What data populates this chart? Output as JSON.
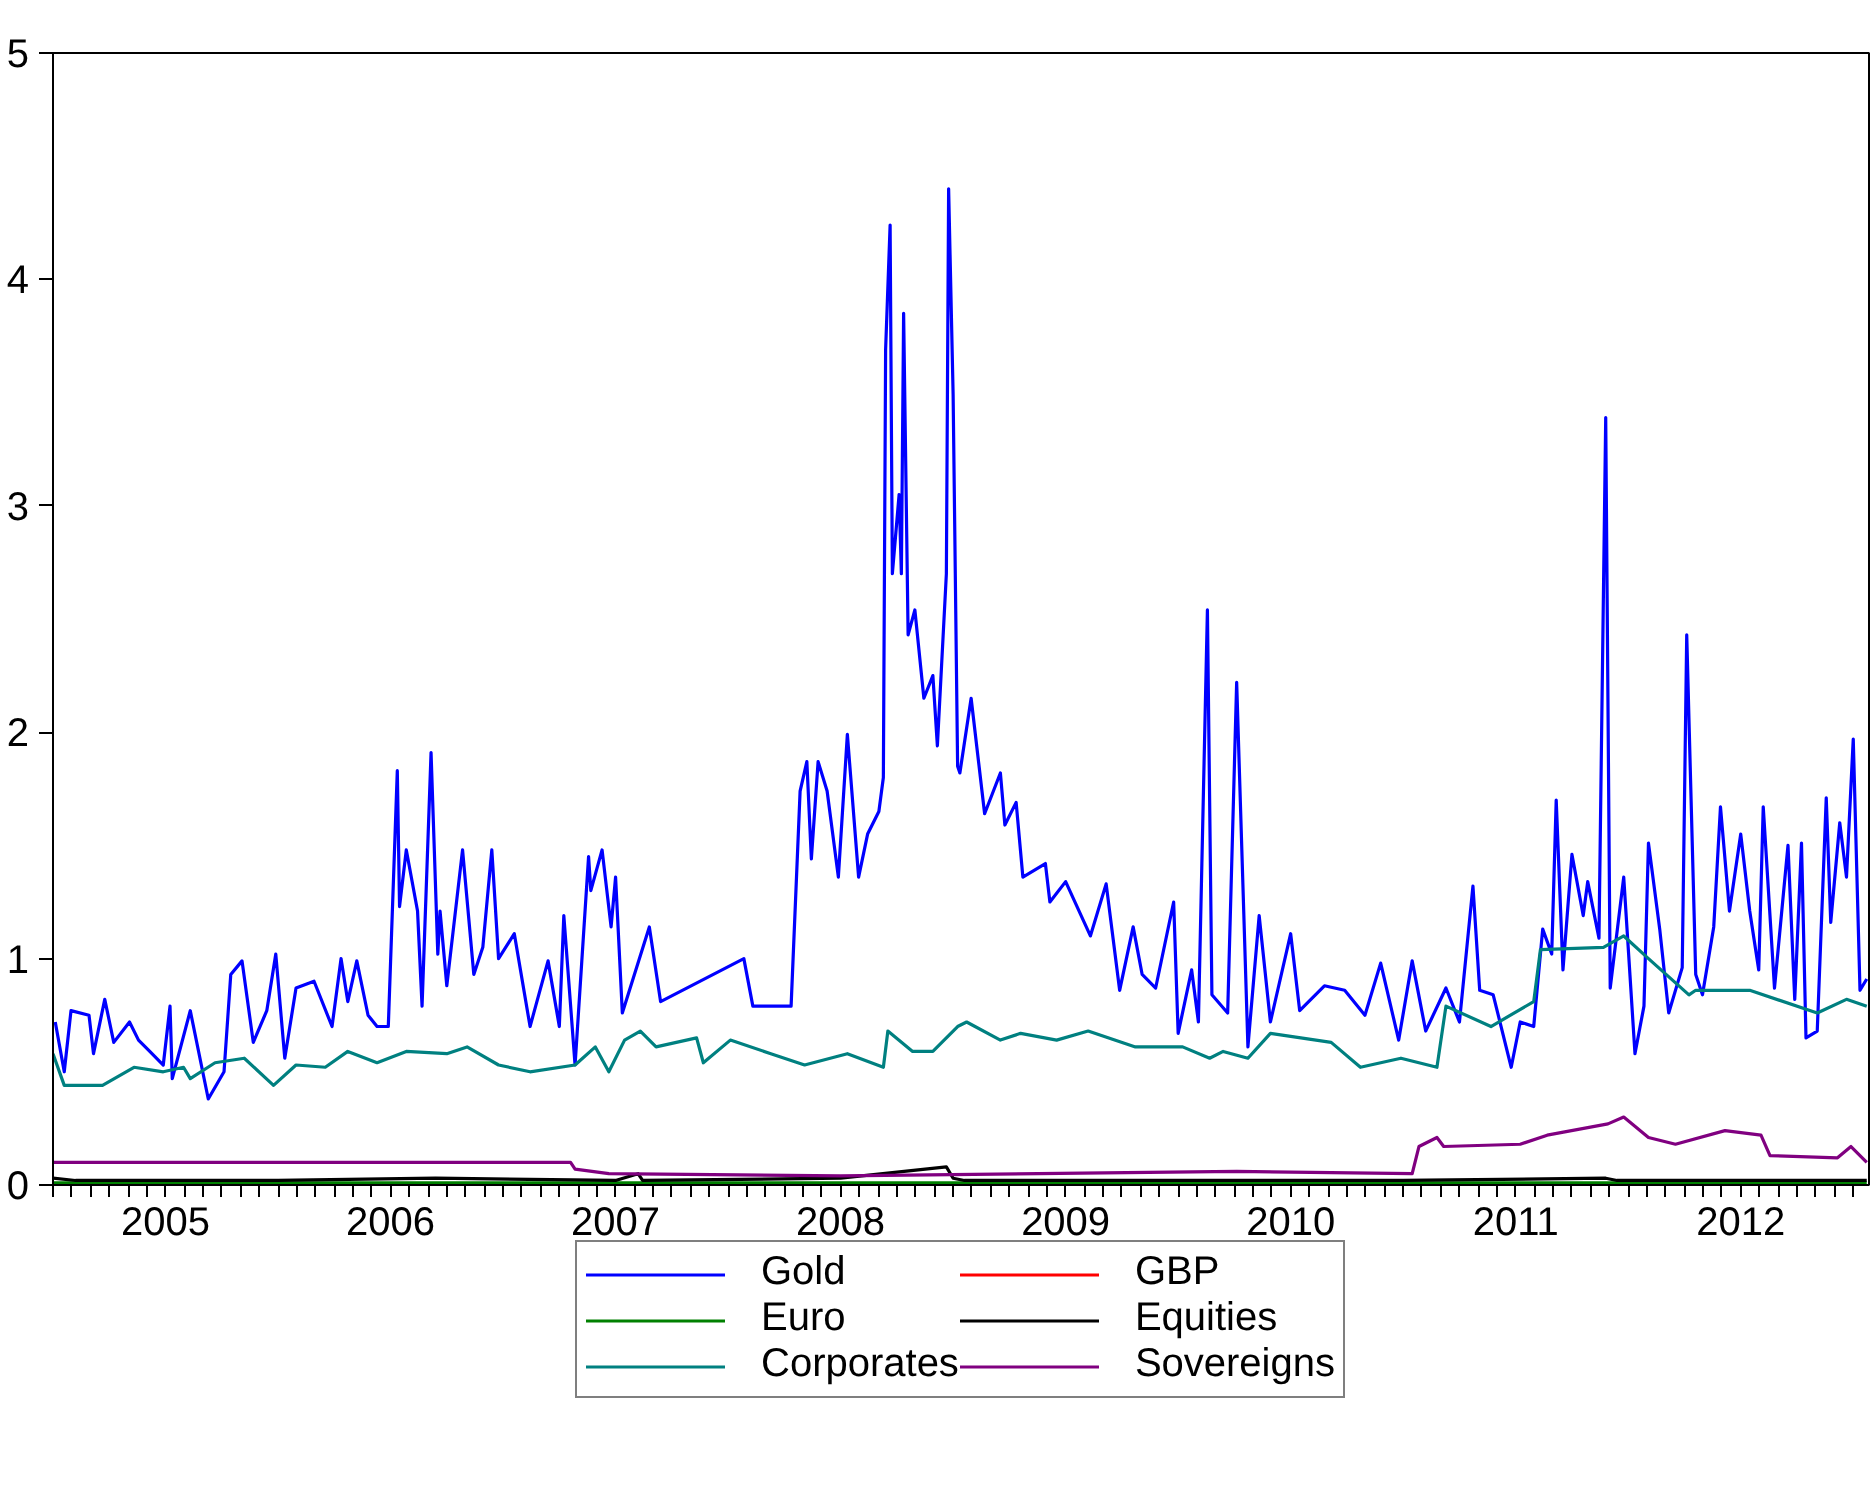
{
  "chart_data": {
    "type": "line",
    "xlim": [
      2005,
      2013.07
    ],
    "ylim": [
      0,
      5
    ],
    "yticks": [
      0,
      1,
      2,
      3,
      4,
      5
    ],
    "xticks": [
      {
        "value": 2005.5,
        "label": "2005"
      },
      {
        "value": 2006.5,
        "label": "2006"
      },
      {
        "value": 2007.5,
        "label": "2007"
      },
      {
        "value": 2008.5,
        "label": "2008"
      },
      {
        "value": 2009.5,
        "label": "2009"
      },
      {
        "value": 2010.5,
        "label": "2010"
      },
      {
        "value": 2011.5,
        "label": "2011"
      },
      {
        "value": 2012.5,
        "label": "2012"
      }
    ],
    "legend": "bottom",
    "line_style": "solid",
    "series": [
      {
        "name": "Gold",
        "color": "#0000ff",
        "x": [
          2005.01,
          2005.05,
          2005.08,
          2005.16,
          2005.18,
          2005.23,
          2005.27,
          2005.34,
          2005.38,
          2005.43,
          2005.49,
          2005.52,
          2005.53,
          2005.61,
          2005.69,
          2005.76,
          2005.79,
          2005.84,
          2005.89,
          2005.95,
          2005.99,
          2006.03,
          2006.08,
          2006.16,
          2006.24,
          2006.28,
          2006.31,
          2006.35,
          2006.4,
          2006.44,
          2006.49,
          2006.53,
          2006.54,
          2006.57,
          2006.62,
          2006.64,
          2006.68,
          2006.71,
          2006.72,
          2006.75,
          2006.82,
          2006.87,
          2006.91,
          2006.95,
          2006.98,
          2007.05,
          2007.12,
          2007.2,
          2007.25,
          2007.27,
          2007.32,
          2007.38,
          2007.39,
          2007.44,
          2007.48,
          2007.5,
          2007.53,
          2007.65,
          2007.7,
          2008.07,
          2008.11,
          2008.28,
          2008.32,
          2008.35,
          2008.37,
          2008.4,
          2008.44,
          2008.49,
          2008.53,
          2008.58,
          2008.62,
          2008.67,
          2008.69,
          2008.7,
          2008.72,
          2008.73,
          2008.76,
          2008.77,
          2008.78,
          2008.8,
          2008.83,
          2008.87,
          2008.91,
          2008.93,
          2008.97,
          2008.98,
          2009.0,
          2009.02,
          2009.03,
          2009.08,
          2009.14,
          2009.21,
          2009.23,
          2009.28,
          2009.31,
          2009.41,
          2009.43,
          2009.5,
          2009.61,
          2009.68,
          2009.74,
          2009.8,
          2009.84,
          2009.9,
          2009.98,
          2010.0,
          2010.06,
          2010.09,
          2010.13,
          2010.15,
          2010.22,
          2010.26,
          2010.31,
          2010.36,
          2010.41,
          2010.5,
          2010.54,
          2010.65,
          2010.74,
          2010.83,
          2010.9,
          2010.98,
          2011.04,
          2011.1,
          2011.19,
          2011.25,
          2011.31,
          2011.34,
          2011.4,
          2011.48,
          2011.52,
          2011.58,
          2011.62,
          2011.66,
          2011.68,
          2011.71,
          2011.75,
          2011.8,
          2011.82,
          2011.87,
          2011.9,
          2011.92,
          2011.98,
          2012.03,
          2012.07,
          2012.09,
          2012.14,
          2012.18,
          2012.24,
          2012.26,
          2012.3,
          2012.33,
          2012.38,
          2012.41,
          2012.45,
          2012.5,
          2012.54,
          2012.58,
          2012.6,
          2012.65,
          2012.71,
          2012.74,
          2012.77,
          2012.79,
          2012.84,
          2012.88,
          2012.9,
          2012.94,
          2012.97,
          2013.0,
          2013.03,
          2013.06
        ],
        "values": [
          0.72,
          0.5,
          0.77,
          0.75,
          0.58,
          0.82,
          0.63,
          0.72,
          0.64,
          0.59,
          0.53,
          0.79,
          0.47,
          0.77,
          0.38,
          0.5,
          0.93,
          0.99,
          0.63,
          0.77,
          1.02,
          0.56,
          0.87,
          0.9,
          0.7,
          1.0,
          0.81,
          0.99,
          0.75,
          0.7,
          0.7,
          1.83,
          1.23,
          1.48,
          1.21,
          0.79,
          1.91,
          1.02,
          1.21,
          0.88,
          1.48,
          0.93,
          1.05,
          1.48,
          1.0,
          1.11,
          0.7,
          0.99,
          0.7,
          1.19,
          0.53,
          1.45,
          1.3,
          1.48,
          1.14,
          1.36,
          0.76,
          1.14,
          0.81,
          1.0,
          0.79,
          0.79,
          1.74,
          1.87,
          1.44,
          1.87,
          1.74,
          1.36,
          1.99,
          1.36,
          1.55,
          1.65,
          1.8,
          3.69,
          4.24,
          2.7,
          3.05,
          2.7,
          3.85,
          2.43,
          2.54,
          2.15,
          2.25,
          1.94,
          2.7,
          4.4,
          3.49,
          1.85,
          1.82,
          2.15,
          1.64,
          1.82,
          1.59,
          1.69,
          1.36,
          1.42,
          1.25,
          1.34,
          1.1,
          1.33,
          0.86,
          1.14,
          0.93,
          0.87,
          1.25,
          0.67,
          0.95,
          0.72,
          2.54,
          0.84,
          0.76,
          2.22,
          0.61,
          1.19,
          0.72,
          1.11,
          0.77,
          0.88,
          0.86,
          0.75,
          0.98,
          0.64,
          0.99,
          0.68,
          0.87,
          0.72,
          1.32,
          0.86,
          0.84,
          0.52,
          0.72,
          0.7,
          1.13,
          1.02,
          1.7,
          0.95,
          1.46,
          1.19,
          1.34,
          1.09,
          3.39,
          0.87,
          1.36,
          0.58,
          0.79,
          1.51,
          1.13,
          0.76,
          0.96,
          2.43,
          0.93,
          0.84,
          1.14,
          1.67,
          1.21,
          1.55,
          1.21,
          0.95,
          1.67,
          0.87,
          1.5,
          0.82,
          1.51,
          0.65,
          0.68,
          1.71,
          1.16,
          1.6,
          1.36,
          1.97,
          0.86,
          0.91
        ]
      },
      {
        "name": "GBP",
        "color": "#ff0000",
        "values": [
          null,
          null
        ]
      },
      {
        "name": "Euro",
        "color": "#008000",
        "x": [
          2005.0,
          2013.06
        ],
        "values": [
          0.01,
          0.01
        ]
      },
      {
        "name": "Equities",
        "color": "#000000",
        "x": [
          2005.0,
          2005.1,
          2006.0,
          2006.7,
          2007.5,
          2007.6,
          2007.62,
          2008.5,
          2008.97,
          2009.0,
          2009.05,
          2010.5,
          2011.0,
          2011.9,
          2011.95,
          2013.06
        ],
        "values": [
          0.03,
          0.02,
          0.02,
          0.03,
          0.02,
          0.05,
          0.02,
          0.03,
          0.08,
          0.03,
          0.02,
          0.02,
          0.02,
          0.03,
          0.02,
          0.02
        ]
      },
      {
        "name": "Corporates",
        "color": "#008080",
        "x": [
          2005.0,
          2005.05,
          2005.22,
          2005.36,
          2005.49,
          2005.58,
          2005.61,
          2005.72,
          2005.85,
          2005.98,
          2006.08,
          2006.21,
          2006.31,
          2006.44,
          2006.57,
          2006.75,
          2006.84,
          2006.98,
          2007.12,
          2007.32,
          2007.41,
          2007.47,
          2007.54,
          2007.61,
          2007.68,
          2007.86,
          2007.89,
          2008.01,
          2008.19,
          2008.34,
          2008.53,
          2008.69,
          2008.71,
          2008.82,
          2008.91,
          2009.02,
          2009.06,
          2009.21,
          2009.3,
          2009.46,
          2009.6,
          2009.81,
          2010.02,
          2010.14,
          2010.2,
          2010.31,
          2010.41,
          2010.68,
          2010.81,
          2010.99,
          2011.15,
          2011.19,
          2011.39,
          2011.58,
          2011.61,
          2011.89,
          2011.98,
          2012.09,
          2012.27,
          2012.3,
          2012.54,
          2012.84,
          2012.97,
          2013.06
        ],
        "values": [
          0.58,
          0.44,
          0.44,
          0.52,
          0.5,
          0.52,
          0.47,
          0.54,
          0.56,
          0.44,
          0.53,
          0.52,
          0.59,
          0.54,
          0.59,
          0.58,
          0.61,
          0.53,
          0.5,
          0.53,
          0.61,
          0.5,
          0.64,
          0.68,
          0.61,
          0.65,
          0.54,
          0.64,
          0.58,
          0.53,
          0.58,
          0.52,
          0.68,
          0.59,
          0.59,
          0.7,
          0.72,
          0.64,
          0.67,
          0.64,
          0.68,
          0.61,
          0.61,
          0.56,
          0.59,
          0.56,
          0.67,
          0.63,
          0.52,
          0.56,
          0.52,
          0.79,
          0.7,
          0.81,
          1.04,
          1.05,
          1.1,
          1.0,
          0.84,
          0.86,
          0.86,
          0.76,
          0.82,
          0.79
        ]
      },
      {
        "name": "Sovereigns",
        "color": "#800080",
        "x": [
          2005.0,
          2007.3,
          2007.32,
          2007.47,
          2008.5,
          2010.26,
          2011.04,
          2011.07,
          2011.15,
          2011.18,
          2011.52,
          2011.64,
          2011.91,
          2011.98,
          2012.09,
          2012.21,
          2012.43,
          2012.59,
          2012.63,
          2012.93,
          2012.99,
          2013.06
        ],
        "values": [
          0.1,
          0.1,
          0.07,
          0.05,
          0.04,
          0.06,
          0.05,
          0.17,
          0.21,
          0.17,
          0.18,
          0.22,
          0.27,
          0.3,
          0.21,
          0.18,
          0.24,
          0.22,
          0.13,
          0.12,
          0.17,
          0.1
        ]
      }
    ]
  }
}
